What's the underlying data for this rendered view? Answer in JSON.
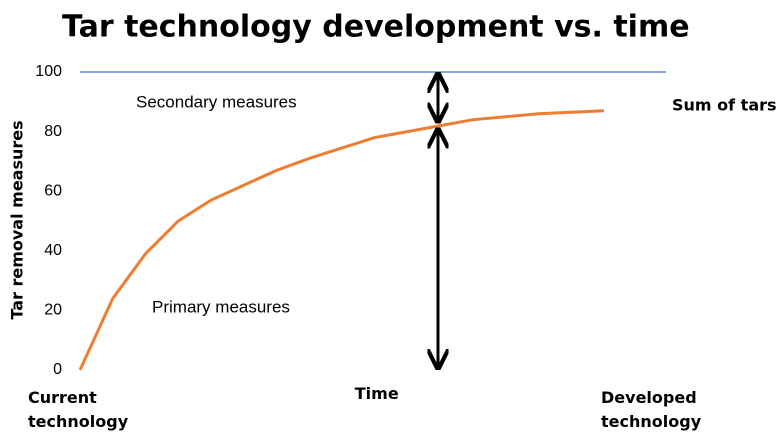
{
  "chart_data": {
    "type": "line",
    "title": "Tar technology development vs. time",
    "y_label": "Tar removal measures",
    "categories": [
      "Current technology",
      null,
      null,
      null,
      null,
      null,
      null,
      null,
      null,
      "Time",
      null,
      null,
      null,
      null,
      null,
      null,
      "Developed technology"
    ],
    "series": [
      {
        "name": "Sum of tars",
        "color": "#ed7d31",
        "values": [
          0,
          24,
          39,
          50,
          57,
          62,
          67,
          71,
          74.5,
          78,
          80,
          82,
          84,
          85,
          86,
          86.5,
          87
        ]
      }
    ],
    "reference_line": {
      "value": 100,
      "color": "#4472c4"
    },
    "annotations": [
      "Secondary measures",
      "Primary measures"
    ],
    "ylim": [
      0,
      100
    ],
    "yticks": [
      0,
      20,
      40,
      60,
      80,
      100
    ],
    "grid": false
  }
}
